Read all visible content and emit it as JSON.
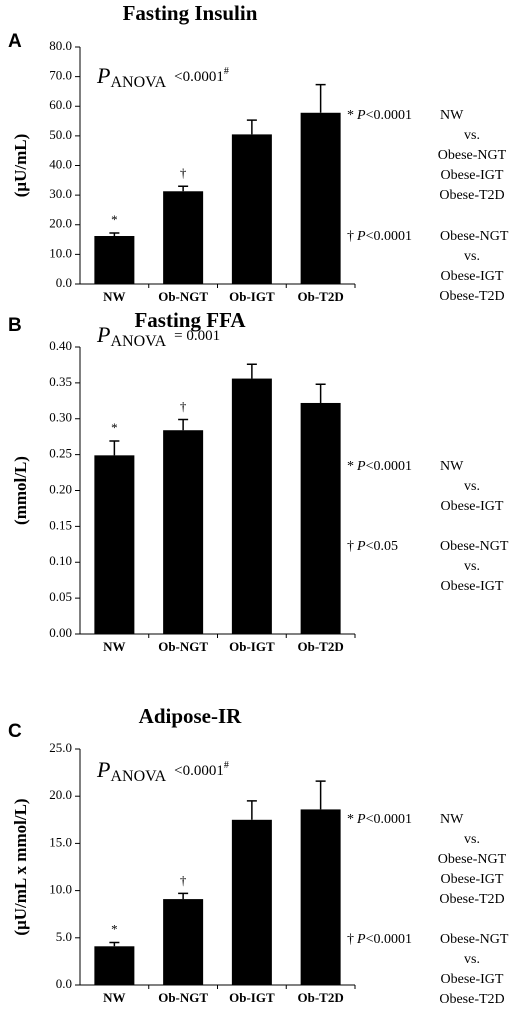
{
  "chart_data": [
    {
      "type": "bar",
      "panel_label": "A",
      "title": "Fasting Insulin",
      "ylabel": "(μU/mL)",
      "categories": [
        "NW",
        "Ob-NGT",
        "Ob-IGT",
        "Ob-T2D"
      ],
      "values": [
        16.2,
        31.3,
        50.5,
        57.8
      ],
      "errors": [
        1.0,
        1.7,
        4.8,
        9.5
      ],
      "color": "#000000",
      "bar_labels": [
        "*",
        "†",
        null,
        null
      ],
      "ylim": [
        0,
        80
      ],
      "yticks": [
        {
          "value": 0,
          "label": "0.0"
        },
        {
          "value": 10,
          "label": "10.0"
        },
        {
          "value": 20,
          "label": "20.0"
        },
        {
          "value": 30,
          "label": "30.0"
        },
        {
          "value": 40,
          "label": "40.0"
        },
        {
          "value": 50,
          "label": "50.0"
        },
        {
          "value": 60,
          "label": "60.0"
        },
        {
          "value": 70,
          "label": "70.0"
        },
        {
          "value": 80,
          "label": "80.0"
        }
      ],
      "anova": {
        "p": "P",
        "sub": "ANOVA",
        "value": "<0.0001",
        "sup": "#"
      },
      "notes": [
        {
          "marker": "*",
          "p": "P",
          "threshold": "<0.0001",
          "lines": [
            "NW",
            "vs.",
            "Obese-NGT",
            "Obese-IGT",
            "Obese-T2D"
          ]
        },
        {
          "marker": "†",
          "p": "P",
          "threshold": "<0.0001",
          "lines": [
            "Obese-NGT",
            "vs.",
            "Obese-IGT",
            "Obese-T2D"
          ]
        }
      ]
    },
    {
      "type": "bar",
      "panel_label": "B",
      "title": "Fasting FFA",
      "ylabel": "(mmol/L)",
      "categories": [
        "NW",
        "Ob-NGT",
        "Ob-IGT",
        "Ob-T2D"
      ],
      "values": [
        0.249,
        0.284,
        0.356,
        0.322
      ],
      "errors": [
        0.02,
        0.015,
        0.02,
        0.026
      ],
      "color": "#000000",
      "bar_labels": [
        "*",
        "†",
        null,
        null
      ],
      "ylim": [
        0,
        0.4
      ],
      "yticks": [
        {
          "value": 0,
          "label": "0.00"
        },
        {
          "value": 0.05,
          "label": "0.05"
        },
        {
          "value": 0.1,
          "label": "0.10"
        },
        {
          "value": 0.15,
          "label": "0.15"
        },
        {
          "value": 0.2,
          "label": "0.20"
        },
        {
          "value": 0.25,
          "label": "0.25"
        },
        {
          "value": 0.3,
          "label": "0.30"
        },
        {
          "value": 0.35,
          "label": "0.35"
        },
        {
          "value": 0.4,
          "label": "0.40"
        }
      ],
      "anova": {
        "p": "P",
        "sub": "ANOVA",
        "value": "= 0.001"
      },
      "notes": [
        {
          "marker": "*",
          "p": "P",
          "threshold": "<0.0001",
          "lines": [
            "NW",
            "vs.",
            "Obese-IGT"
          ]
        },
        {
          "marker": "†",
          "p": "P",
          "threshold": "<0.05",
          "lines": [
            "Obese-NGT",
            "vs.",
            "Obese-IGT"
          ]
        }
      ]
    },
    {
      "type": "bar",
      "panel_label": "C",
      "title": "Adipose-IR",
      "ylabel": "(μU/mL x mmol/L)",
      "categories": [
        "NW",
        "Ob-NGT",
        "Ob-IGT",
        "Ob-T2D"
      ],
      "values": [
        4.1,
        9.1,
        17.5,
        18.6
      ],
      "errors": [
        0.4,
        0.6,
        2.0,
        3.0
      ],
      "color": "#000000",
      "bar_labels": [
        "*",
        "†",
        null,
        null
      ],
      "ylim": [
        0,
        25
      ],
      "yticks": [
        {
          "value": 0,
          "label": "0.0"
        },
        {
          "value": 5,
          "label": "5.0"
        },
        {
          "value": 10,
          "label": "10.0"
        },
        {
          "value": 15,
          "label": "15.0"
        },
        {
          "value": 20,
          "label": "20.0"
        },
        {
          "value": 25,
          "label": "25.0"
        }
      ],
      "anova": {
        "p": "P",
        "sub": "ANOVA",
        "value": "<0.0001",
        "sup": "#"
      },
      "notes": [
        {
          "marker": "*",
          "p": "P",
          "threshold": "<0.0001",
          "lines": [
            "NW",
            "vs.",
            "Obese-NGT",
            "Obese-IGT",
            "Obese-T2D"
          ]
        },
        {
          "marker": "†",
          "p": "P",
          "threshold": "<0.0001",
          "lines": [
            "Obese-NGT",
            "vs.",
            "Obese-IGT",
            "Obese-T2D"
          ]
        }
      ]
    }
  ]
}
